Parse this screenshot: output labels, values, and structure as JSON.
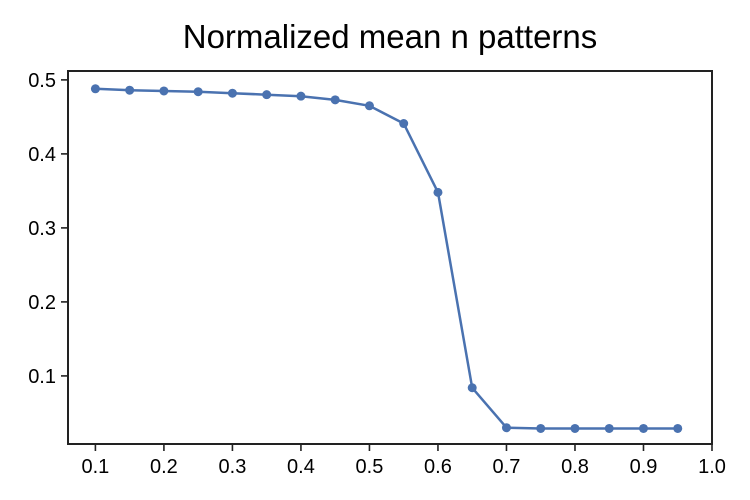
{
  "chart_data": {
    "type": "line",
    "title": "Normalized mean n patterns",
    "xlabel": "",
    "ylabel": "",
    "xlim": [
      0.06,
      1.0
    ],
    "ylim": [
      0.008,
      0.512
    ],
    "xticks": [
      "0.1",
      "0.2",
      "0.3",
      "0.4",
      "0.5",
      "0.6",
      "0.7",
      "0.8",
      "0.9",
      "1.0"
    ],
    "yticks": [
      "0.1",
      "0.2",
      "0.3",
      "0.4",
      "0.5"
    ],
    "grid": false,
    "legend": "none",
    "series": [
      {
        "color": "#4a72b0",
        "marker": "circle",
        "x": [
          0.1,
          0.15,
          0.2,
          0.25,
          0.3,
          0.35,
          0.4,
          0.45,
          0.5,
          0.55,
          0.6,
          0.65,
          0.7,
          0.75,
          0.8,
          0.85,
          0.9,
          0.95
        ],
        "y": [
          0.488,
          0.486,
          0.485,
          0.484,
          0.482,
          0.48,
          0.478,
          0.473,
          0.465,
          0.441,
          0.348,
          0.084,
          0.03,
          0.029,
          0.029,
          0.029,
          0.029,
          0.029
        ]
      }
    ]
  }
}
